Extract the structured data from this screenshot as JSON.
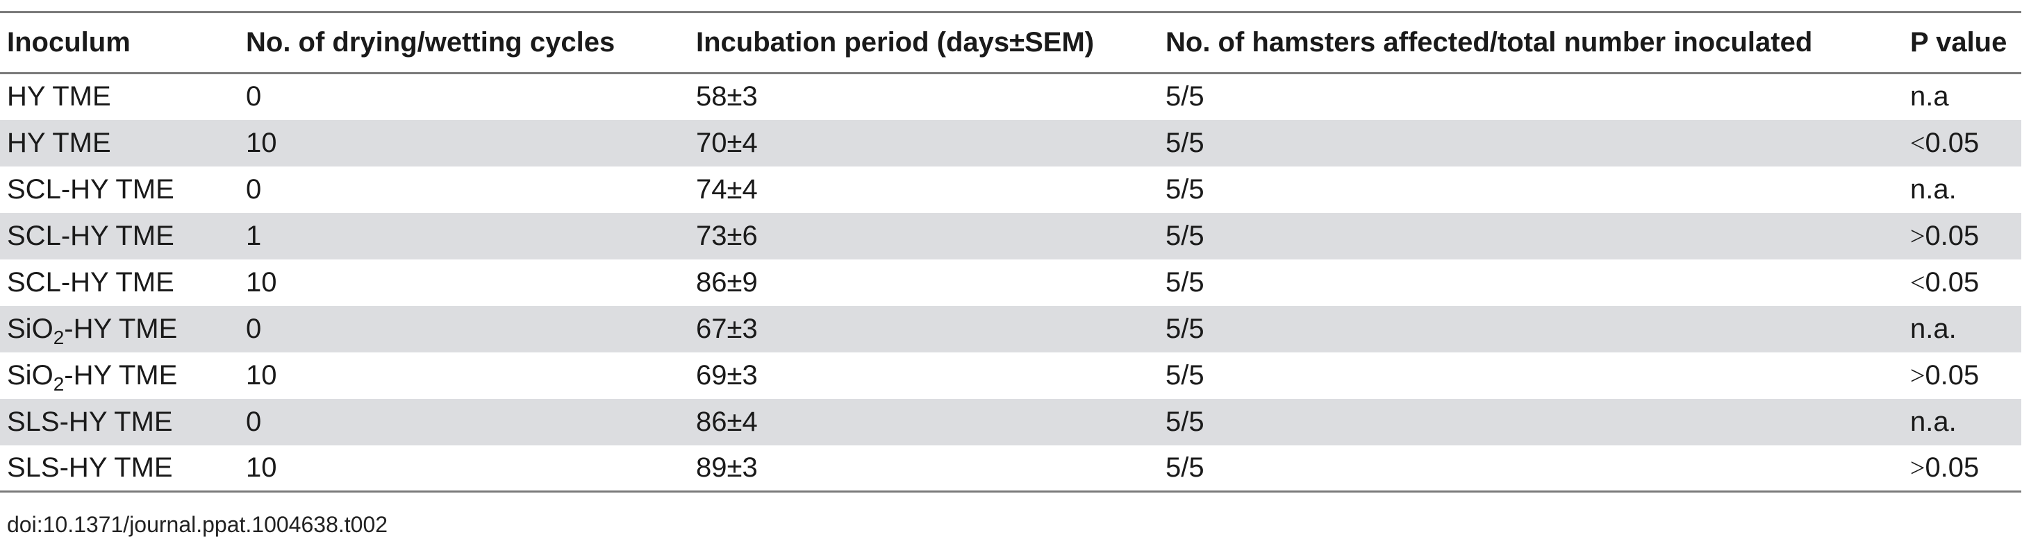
{
  "table": {
    "headers": [
      "Inoculum",
      "No. of drying/wetting cycles",
      "Incubation period (days±SEM)",
      "No. of hamsters affected/total number inoculated",
      "P value"
    ],
    "rows": [
      {
        "inoculum": "HY TME",
        "inoculum_sub": "",
        "inoculum_rest": "",
        "cycles": "0",
        "incubation": "58±3",
        "affected": "5/5",
        "p_symbol": "",
        "p_value": "n.a"
      },
      {
        "inoculum": "HY TME",
        "inoculum_sub": "",
        "inoculum_rest": "",
        "cycles": "10",
        "incubation": "70±4",
        "affected": "5/5",
        "p_symbol": "<",
        "p_value": "0.05"
      },
      {
        "inoculum": "SCL-HY TME",
        "inoculum_sub": "",
        "inoculum_rest": "",
        "cycles": "0",
        "incubation": "74±4",
        "affected": "5/5",
        "p_symbol": "",
        "p_value": "n.a."
      },
      {
        "inoculum": "SCL-HY TME",
        "inoculum_sub": "",
        "inoculum_rest": "",
        "cycles": "1",
        "incubation": "73±6",
        "affected": "5/5",
        "p_symbol": ">",
        "p_value": "0.05"
      },
      {
        "inoculum": "SCL-HY TME",
        "inoculum_sub": "",
        "inoculum_rest": "",
        "cycles": "10",
        "incubation": "86±9",
        "affected": "5/5",
        "p_symbol": "<",
        "p_value": "0.05"
      },
      {
        "inoculum": "SiO",
        "inoculum_sub": "2",
        "inoculum_rest": "-HY TME",
        "cycles": "0",
        "incubation": "67±3",
        "affected": "5/5",
        "p_symbol": "",
        "p_value": "n.a."
      },
      {
        "inoculum": "SiO",
        "inoculum_sub": "2",
        "inoculum_rest": "-HY TME",
        "cycles": "10",
        "incubation": "69±3",
        "affected": "5/5",
        "p_symbol": ">",
        "p_value": "0.05"
      },
      {
        "inoculum": "SLS-HY TME",
        "inoculum_sub": "",
        "inoculum_rest": "",
        "cycles": "0",
        "incubation": "86±4",
        "affected": "5/5",
        "p_symbol": "",
        "p_value": "n.a."
      },
      {
        "inoculum": "SLS-HY TME",
        "inoculum_sub": "",
        "inoculum_rest": "",
        "cycles": "10",
        "incubation": "89±3",
        "affected": "5/5",
        "p_symbol": ">",
        "p_value": "0.05"
      }
    ]
  },
  "footer": {
    "doi": "doi:10.1371/journal.ppat.1004638.t002"
  }
}
